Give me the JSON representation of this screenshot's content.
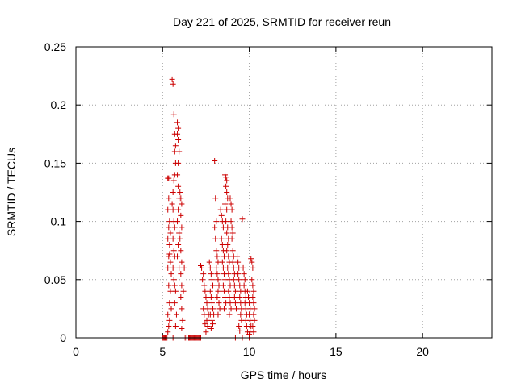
{
  "chart_data": {
    "type": "scatter",
    "title": "Day 221 of 2025, SRMTID for receiver reun",
    "xlabel": "GPS time / hours",
    "ylabel": "SRMTID / TECUs",
    "xlim": [
      0,
      24
    ],
    "ylim": [
      0,
      0.25
    ],
    "xticks": [
      0,
      5,
      10,
      15,
      20
    ],
    "xtick_labels": [
      "0",
      "5",
      "10",
      "15",
      "20"
    ],
    "yticks": [
      0,
      0.05,
      0.1,
      0.15,
      0.2,
      0.25
    ],
    "ytick_labels": [
      "0",
      "0.05",
      "0.1",
      "0.15",
      "0.2",
      "0.25"
    ],
    "grid": true,
    "marker": "+",
    "color": "#cc0000",
    "series": [
      {
        "points": [
          [
            5.0,
            0.0
          ],
          [
            5.05,
            0.0
          ],
          [
            5.1,
            0.0
          ],
          [
            5.15,
            0.0
          ],
          [
            5.2,
            0.0
          ],
          [
            5.25,
            0.0
          ],
          [
            5.6,
            0.0
          ],
          [
            6.3,
            0.0
          ],
          [
            6.4,
            0.0
          ],
          [
            6.5,
            0.0
          ],
          [
            6.55,
            0.0
          ],
          [
            6.6,
            0.0
          ],
          [
            6.65,
            0.0
          ],
          [
            6.7,
            0.0
          ],
          [
            6.75,
            0.0
          ],
          [
            6.8,
            0.0
          ],
          [
            6.85,
            0.0
          ],
          [
            6.9,
            0.0
          ],
          [
            6.95,
            0.0
          ],
          [
            7.0,
            0.0
          ],
          [
            7.05,
            0.0
          ],
          [
            7.1,
            0.0
          ],
          [
            7.15,
            0.0
          ],
          [
            7.2,
            0.0
          ],
          [
            9.2,
            0.0
          ],
          [
            9.6,
            0.0
          ],
          [
            10.0,
            0.0
          ],
          [
            5.3,
            0.005
          ],
          [
            5.35,
            0.01
          ],
          [
            5.3,
            0.02
          ],
          [
            5.4,
            0.03
          ],
          [
            5.35,
            0.045
          ],
          [
            5.3,
            0.06
          ],
          [
            5.35,
            0.07
          ],
          [
            5.4,
            0.072
          ],
          [
            5.3,
            0.085
          ],
          [
            5.35,
            0.095
          ],
          [
            5.3,
            0.11
          ],
          [
            5.35,
            0.12
          ],
          [
            5.3,
            0.137
          ],
          [
            5.35,
            0.137
          ],
          [
            5.4,
            0.1
          ],
          [
            5.45,
            0.09
          ],
          [
            5.4,
            0.08
          ],
          [
            5.45,
            0.065
          ],
          [
            5.5,
            0.055
          ],
          [
            5.45,
            0.04
          ],
          [
            5.5,
            0.025
          ],
          [
            5.4,
            0.015
          ],
          [
            5.55,
            0.222
          ],
          [
            5.6,
            0.218
          ],
          [
            5.65,
            0.192
          ],
          [
            5.7,
            0.175
          ],
          [
            5.75,
            0.165
          ],
          [
            5.7,
            0.16
          ],
          [
            5.75,
            0.15
          ],
          [
            5.7,
            0.14
          ],
          [
            5.65,
            0.135
          ],
          [
            5.6,
            0.125
          ],
          [
            5.55,
            0.115
          ],
          [
            5.6,
            0.11
          ],
          [
            5.65,
            0.1
          ],
          [
            5.7,
            0.095
          ],
          [
            5.6,
            0.085
          ],
          [
            5.65,
            0.075
          ],
          [
            5.7,
            0.07
          ],
          [
            5.6,
            0.06
          ],
          [
            5.65,
            0.05
          ],
          [
            5.7,
            0.045
          ],
          [
            5.75,
            0.04
          ],
          [
            5.7,
            0.03
          ],
          [
            5.8,
            0.02
          ],
          [
            5.75,
            0.01
          ],
          [
            5.85,
            0.185
          ],
          [
            5.9,
            0.18
          ],
          [
            5.85,
            0.175
          ],
          [
            5.9,
            0.17
          ],
          [
            5.95,
            0.16
          ],
          [
            5.9,
            0.15
          ],
          [
            5.85,
            0.14
          ],
          [
            5.9,
            0.13
          ],
          [
            5.95,
            0.12
          ],
          [
            5.9,
            0.11
          ],
          [
            5.85,
            0.1
          ],
          [
            5.95,
            0.09
          ],
          [
            5.9,
            0.08
          ],
          [
            5.85,
            0.07
          ],
          [
            5.95,
            0.06
          ],
          [
            6.0,
            0.125
          ],
          [
            6.05,
            0.12
          ],
          [
            6.1,
            0.115
          ],
          [
            6.05,
            0.105
          ],
          [
            6.1,
            0.095
          ],
          [
            6.0,
            0.085
          ],
          [
            6.05,
            0.075
          ],
          [
            6.1,
            0.065
          ],
          [
            6.05,
            0.055
          ],
          [
            6.1,
            0.045
          ],
          [
            6.05,
            0.035
          ],
          [
            6.1,
            0.025
          ],
          [
            6.15,
            0.015
          ],
          [
            6.1,
            0.008
          ],
          [
            6.2,
            0.04
          ],
          [
            6.25,
            0.06
          ],
          [
            7.2,
            0.062
          ],
          [
            7.25,
            0.06
          ],
          [
            7.3,
            0.05
          ],
          [
            7.35,
            0.055
          ],
          [
            7.4,
            0.045
          ],
          [
            7.45,
            0.04
          ],
          [
            7.5,
            0.035
          ],
          [
            7.55,
            0.03
          ],
          [
            7.6,
            0.025
          ],
          [
            7.65,
            0.02
          ],
          [
            7.55,
            0.015
          ],
          [
            7.6,
            0.01
          ],
          [
            7.5,
            0.005
          ],
          [
            7.45,
            0.012
          ],
          [
            7.4,
            0.02
          ],
          [
            7.35,
            0.025
          ],
          [
            7.7,
            0.065
          ],
          [
            7.75,
            0.06
          ],
          [
            7.8,
            0.055
          ],
          [
            7.85,
            0.05
          ],
          [
            7.9,
            0.045
          ],
          [
            7.75,
            0.04
          ],
          [
            7.8,
            0.035
          ],
          [
            7.85,
            0.03
          ],
          [
            7.9,
            0.025
          ],
          [
            7.95,
            0.02
          ],
          [
            7.85,
            0.015
          ],
          [
            7.9,
            0.012
          ],
          [
            7.8,
            0.008
          ],
          [
            7.75,
            0.02
          ],
          [
            8.0,
            0.152
          ],
          [
            8.05,
            0.12
          ],
          [
            8.1,
            0.1
          ],
          [
            8.0,
            0.095
          ],
          [
            8.05,
            0.085
          ],
          [
            8.1,
            0.075
          ],
          [
            8.15,
            0.07
          ],
          [
            8.2,
            0.065
          ],
          [
            8.1,
            0.06
          ],
          [
            8.15,
            0.055
          ],
          [
            8.2,
            0.05
          ],
          [
            8.25,
            0.045
          ],
          [
            8.2,
            0.04
          ],
          [
            8.15,
            0.035
          ],
          [
            8.25,
            0.03
          ],
          [
            8.3,
            0.025
          ],
          [
            8.2,
            0.02
          ],
          [
            8.35,
            0.11
          ],
          [
            8.4,
            0.105
          ],
          [
            8.45,
            0.1
          ],
          [
            8.5,
            0.095
          ],
          [
            8.4,
            0.085
          ],
          [
            8.45,
            0.08
          ],
          [
            8.5,
            0.075
          ],
          [
            8.55,
            0.07
          ],
          [
            8.45,
            0.065
          ],
          [
            8.5,
            0.06
          ],
          [
            8.55,
            0.055
          ],
          [
            8.6,
            0.05
          ],
          [
            8.5,
            0.045
          ],
          [
            8.55,
            0.04
          ],
          [
            8.6,
            0.035
          ],
          [
            8.65,
            0.03
          ],
          [
            8.55,
            0.025
          ],
          [
            8.6,
            0.14
          ],
          [
            8.65,
            0.138
          ],
          [
            8.7,
            0.135
          ],
          [
            8.65,
            0.13
          ],
          [
            8.7,
            0.125
          ],
          [
            8.75,
            0.12
          ],
          [
            8.6,
            0.115
          ],
          [
            8.7,
            0.11
          ],
          [
            8.65,
            0.1
          ],
          [
            8.75,
            0.095
          ],
          [
            8.7,
            0.09
          ],
          [
            8.8,
            0.085
          ],
          [
            8.75,
            0.08
          ],
          [
            8.7,
            0.075
          ],
          [
            8.8,
            0.07
          ],
          [
            8.85,
            0.065
          ],
          [
            8.75,
            0.06
          ],
          [
            8.8,
            0.055
          ],
          [
            8.85,
            0.05
          ],
          [
            8.9,
            0.045
          ],
          [
            8.8,
            0.04
          ],
          [
            8.85,
            0.035
          ],
          [
            8.9,
            0.03
          ],
          [
            8.95,
            0.025
          ],
          [
            8.85,
            0.02
          ],
          [
            8.9,
            0.12
          ],
          [
            8.95,
            0.115
          ],
          [
            9.0,
            0.11
          ],
          [
            8.95,
            0.1
          ],
          [
            9.0,
            0.095
          ],
          [
            9.05,
            0.09
          ],
          [
            9.0,
            0.085
          ],
          [
            9.05,
            0.075
          ],
          [
            9.1,
            0.07
          ],
          [
            9.05,
            0.065
          ],
          [
            9.1,
            0.06
          ],
          [
            9.15,
            0.055
          ],
          [
            9.1,
            0.05
          ],
          [
            9.15,
            0.045
          ],
          [
            9.2,
            0.04
          ],
          [
            9.15,
            0.035
          ],
          [
            9.2,
            0.03
          ],
          [
            9.25,
            0.025
          ],
          [
            9.3,
            0.07
          ],
          [
            9.35,
            0.065
          ],
          [
            9.4,
            0.06
          ],
          [
            9.35,
            0.055
          ],
          [
            9.4,
            0.05
          ],
          [
            9.45,
            0.045
          ],
          [
            9.5,
            0.04
          ],
          [
            9.45,
            0.035
          ],
          [
            9.5,
            0.03
          ],
          [
            9.55,
            0.025
          ],
          [
            9.5,
            0.02
          ],
          [
            9.55,
            0.015
          ],
          [
            9.4,
            0.01
          ],
          [
            9.45,
            0.006
          ],
          [
            9.6,
            0.102
          ],
          [
            9.65,
            0.06
          ],
          [
            9.7,
            0.055
          ],
          [
            9.75,
            0.05
          ],
          [
            9.7,
            0.045
          ],
          [
            9.75,
            0.04
          ],
          [
            9.8,
            0.035
          ],
          [
            9.75,
            0.03
          ],
          [
            9.8,
            0.025
          ],
          [
            9.85,
            0.02
          ],
          [
            9.8,
            0.015
          ],
          [
            9.85,
            0.01
          ],
          [
            9.9,
            0.005
          ],
          [
            9.9,
            0.04
          ],
          [
            9.95,
            0.035
          ],
          [
            10.0,
            0.03
          ],
          [
            10.05,
            0.025
          ],
          [
            10.0,
            0.02
          ],
          [
            10.05,
            0.015
          ],
          [
            10.1,
            0.01
          ],
          [
            10.05,
            0.005
          ],
          [
            10.0,
            0.003
          ],
          [
            10.1,
            0.068
          ],
          [
            10.15,
            0.065
          ],
          [
            10.2,
            0.06
          ],
          [
            10.15,
            0.05
          ],
          [
            10.2,
            0.045
          ],
          [
            10.25,
            0.04
          ],
          [
            10.2,
            0.035
          ],
          [
            10.25,
            0.03
          ],
          [
            10.3,
            0.025
          ],
          [
            10.25,
            0.02
          ],
          [
            10.3,
            0.015
          ],
          [
            10.2,
            0.01
          ],
          [
            10.25,
            0.005
          ]
        ]
      }
    ]
  }
}
